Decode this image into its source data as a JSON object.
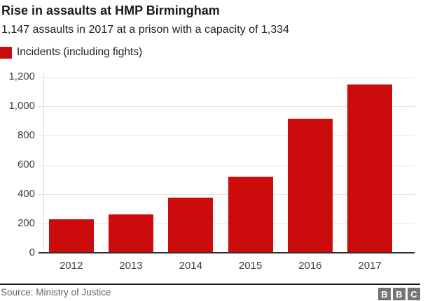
{
  "header": {
    "title_note": "bound from chart_data"
  },
  "chart_data": {
    "type": "bar",
    "title": "Rise in assaults at HMP Birmingham",
    "subtitle": "1,147 assaults in 2017 at a prison with a capacity of 1,334",
    "series_name": "Incidents (including fights)",
    "categories": [
      "2012",
      "2013",
      "2014",
      "2015",
      "2016",
      "2017"
    ],
    "values": [
      230,
      260,
      375,
      520,
      915,
      1147
    ],
    "xlabel": "",
    "ylabel": "",
    "ylim": [
      0,
      1200
    ],
    "ytick_interval": 200,
    "ytick_labels": [
      "0",
      "200",
      "400",
      "600",
      "800",
      "1,000",
      "1,200"
    ],
    "grid": "horizontal",
    "legend_position": "top-left",
    "bar_color": "#cc0c0c"
  },
  "colors": {
    "bar_red": "#cc0c0c",
    "logo_gray": "#757575",
    "gridline_gray": "#e6e6e6",
    "axis_text_gray": "#404040",
    "source_gray": "#666666"
  },
  "footer": {
    "source": "Source: Ministry of Justice",
    "logo_letters": [
      "B",
      "B",
      "C"
    ]
  }
}
